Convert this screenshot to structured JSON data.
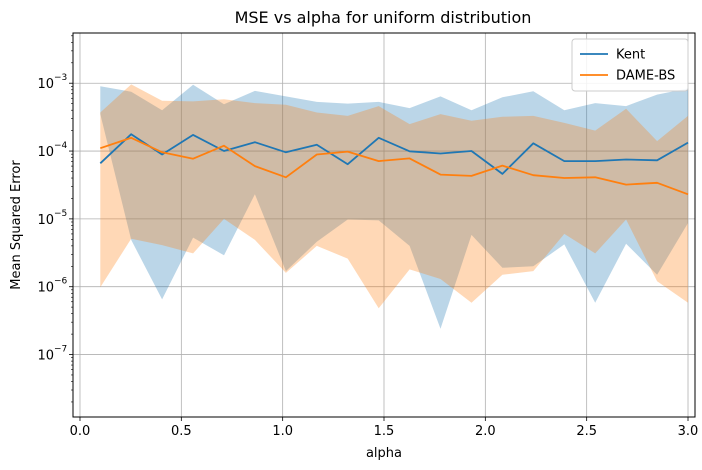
{
  "chart_data": {
    "type": "line",
    "title": "MSE vs alpha for uniform distribution",
    "xlabel": "alpha",
    "ylabel": "Mean Squared Error",
    "yscale": "log",
    "xlim": [
      -0.0345,
      3.0345
    ],
    "ylim": [
      1.2e-08,
      0.0055
    ],
    "grid": true,
    "legend_position": "upper right",
    "x_ticks": [
      0.0,
      0.5,
      1.0,
      1.5,
      2.0,
      2.5,
      3.0
    ],
    "x_tick_labels": [
      "0.0",
      "0.5",
      "1.0",
      "1.5",
      "2.0",
      "2.5",
      "3.0"
    ],
    "y_ticks": [
      1e-07,
      1e-06,
      1e-05,
      0.0001,
      0.001
    ],
    "y_tick_labels": [
      "10",
      "10",
      "10",
      "10",
      "10"
    ],
    "y_tick_exponents": [
      "−7",
      "−6",
      "−5",
      "−4",
      "−3"
    ],
    "x": [
      0.1,
      0.2526,
      0.4053,
      0.5579,
      0.7105,
      0.8632,
      1.0158,
      1.1684,
      1.3211,
      1.4737,
      1.6263,
      1.7789,
      1.9316,
      2.0842,
      2.2368,
      2.3895,
      2.5421,
      2.6947,
      2.8474,
      3.0
    ],
    "series": [
      {
        "name": "Kent",
        "color": "#1f77b4",
        "band_color": "#1f77b4",
        "values": [
          6.6e-05,
          0.000177,
          8.9e-05,
          0.000173,
          0.0001,
          0.000135,
          9.6e-05,
          0.000124,
          6.4e-05,
          0.000157,
          9.9e-05,
          9.2e-05,
          0.0001,
          4.6e-05,
          0.00013,
          7.1e-05,
          7.1e-05,
          7.5e-05,
          7.3e-05,
          0.000133
        ],
        "upper": [
          0.0009,
          0.00075,
          0.0004,
          0.00095,
          0.00049,
          0.00077,
          0.00064,
          0.00053,
          0.0005,
          0.00053,
          0.00043,
          0.00064,
          0.0004,
          0.00062,
          0.00076,
          0.0004,
          0.00051,
          0.00046,
          0.00068,
          0.00084
        ],
        "lower": [
          0.00035,
          4.9e-06,
          6.5e-07,
          5.3e-06,
          2.9e-06,
          2.3e-05,
          1.7e-06,
          4.6e-06,
          9.8e-06,
          9.5e-06,
          4e-06,
          2.4e-07,
          5.8e-06,
          1.9e-06,
          2e-06,
          4.2e-06,
          5.8e-07,
          4.3e-06,
          1.5e-06,
          8.7e-06
        ]
      },
      {
        "name": "DAME-BS",
        "color": "#ff7f0e",
        "band_color": "#ff7f0e",
        "values": [
          0.00011,
          0.000157,
          9.6e-05,
          7.7e-05,
          0.00012,
          6e-05,
          4.1e-05,
          8.9e-05,
          9.8e-05,
          7.1e-05,
          7.8e-05,
          4.5e-05,
          4.3e-05,
          6.1e-05,
          4.4e-05,
          4e-05,
          4.1e-05,
          3.2e-05,
          3.4e-05,
          2.3e-05
        ],
        "upper": [
          0.00037,
          0.00096,
          0.00055,
          0.00054,
          0.00058,
          0.00051,
          0.00048,
          0.00037,
          0.00033,
          0.00046,
          0.00025,
          0.00035,
          0.00028,
          0.00032,
          0.00033,
          0.00026,
          0.0002,
          0.00042,
          0.00014,
          0.00033
        ],
        "lower": [
          9.8e-07,
          5.1e-06,
          4.1e-06,
          3.1e-06,
          1e-05,
          4.9e-06,
          1.6e-06,
          4e-06,
          2.6e-06,
          4.8e-07,
          1.8e-06,
          1.3e-06,
          5.8e-07,
          1.5e-06,
          1.7e-06,
          6e-06,
          3.1e-06,
          9.8e-06,
          1.2e-06,
          5.8e-07
        ]
      }
    ]
  }
}
